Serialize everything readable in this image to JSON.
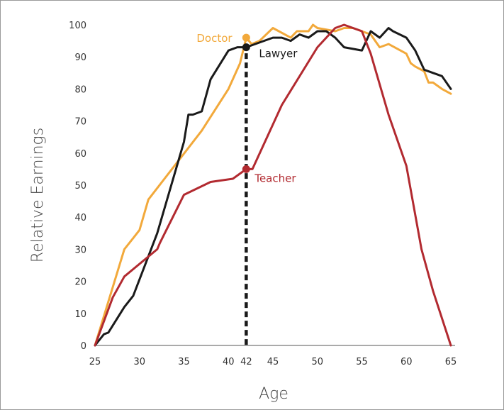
{
  "chart_data": {
    "type": "line",
    "xlabel": "Age",
    "ylabel": "Relative Earnings",
    "xlim": [
      25,
      65
    ],
    "ylim": [
      0,
      100
    ],
    "xticks": [
      "25",
      "30",
      "35",
      "40",
      "42",
      "45",
      "50",
      "55",
      "60",
      "65"
    ],
    "xtick_values": [
      25,
      30,
      35,
      40,
      42,
      45,
      50,
      55,
      60,
      65
    ],
    "yticks": [
      "0",
      "10",
      "20",
      "30",
      "40",
      "50",
      "60",
      "70",
      "80",
      "90",
      "100"
    ],
    "ytick_values": [
      0,
      10,
      20,
      30,
      40,
      50,
      60,
      70,
      80,
      90,
      100
    ],
    "grid": false,
    "vertical_reference_line": {
      "x": 42,
      "style": "dashed",
      "color": "#1a1a1a"
    },
    "series": [
      {
        "name": "Doctor",
        "color": "#f2a93b",
        "marker_at_x": 42,
        "x": [
          25,
          28.3,
          29.3,
          30,
          31,
          37,
          40,
          41.3,
          42,
          42.6,
          43.5,
          45,
          47,
          47.7,
          49,
          49.5,
          50,
          52,
          53,
          54,
          55,
          56,
          57,
          58,
          60,
          60.5,
          61,
          62,
          62.5,
          63,
          64,
          65
        ],
        "y": [
          0,
          30,
          33.5,
          36,
          45.5,
          67,
          80,
          88,
          96,
          94,
          95,
          99,
          96,
          98,
          98,
          100,
          99,
          98,
          99,
          99,
          98,
          97,
          93,
          94,
          91,
          88,
          87,
          85.5,
          82,
          82,
          80,
          78.5
        ]
      },
      {
        "name": "Lawyer",
        "color": "#1a1a1a",
        "marker_at_x": 42,
        "x": [
          25,
          26,
          26.5,
          28.3,
          29.3,
          32,
          35,
          35.5,
          36,
          37,
          38,
          40,
          41,
          42,
          43,
          45,
          46,
          47,
          48,
          49,
          50,
          51,
          52,
          53,
          54,
          55,
          56,
          57,
          58,
          58.5,
          60,
          61,
          62,
          63,
          64,
          65
        ],
        "y": [
          0,
          3.5,
          4,
          12,
          15.5,
          35,
          63.5,
          72,
          72,
          73,
          83,
          92,
          93,
          93,
          94,
          96,
          96,
          95,
          97,
          96,
          98,
          98,
          96,
          93,
          92.5,
          92,
          98,
          96,
          99,
          98,
          96,
          92,
          86,
          85,
          84,
          80
        ]
      },
      {
        "name": "Teacher",
        "color": "#b22a30",
        "marker_at_x": 42,
        "x": [
          25,
          27,
          28.3,
          32,
          32.3,
          35,
          38,
          40.5,
          42,
          42.7,
          46,
          50,
          52,
          53,
          55,
          56,
          58,
          60,
          61.7,
          63,
          65
        ],
        "y": [
          0,
          15,
          21.5,
          30,
          32,
          47,
          51,
          52,
          55,
          55,
          75,
          93,
          99,
          100,
          98,
          91,
          72,
          56,
          30,
          17,
          0
        ]
      }
    ],
    "annotations": [
      {
        "text": "Doctor",
        "series": "Doctor"
      },
      {
        "text": "Lawyer",
        "series": "Lawyer"
      },
      {
        "text": "Teacher",
        "series": "Teacher"
      }
    ]
  }
}
